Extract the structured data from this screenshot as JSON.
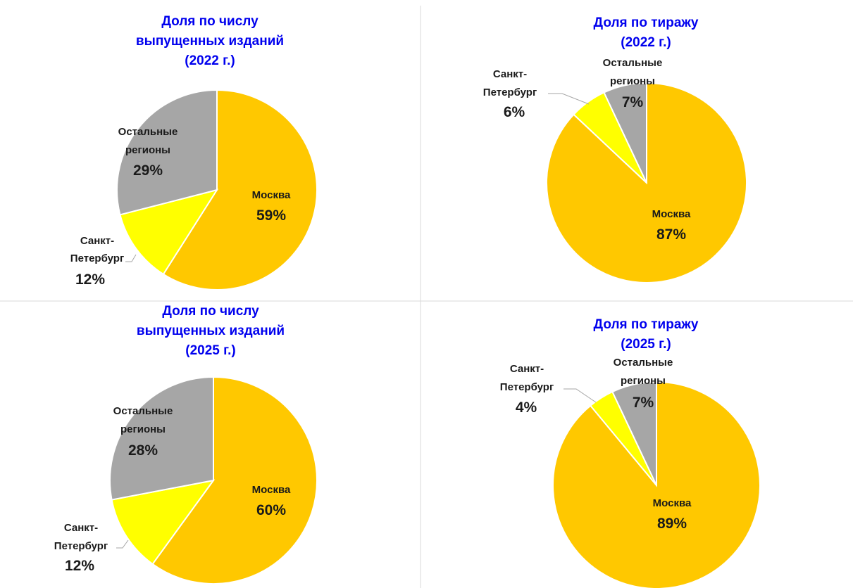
{
  "colors": {
    "moscow": "#ffc800",
    "spb": "#ffff00",
    "other": "#a6a6a6",
    "title": "#0000ee",
    "leader": "#a6a6a6",
    "divider": "#d9d9d9"
  },
  "chart_data": [
    {
      "type": "pie",
      "title_lines": [
        "Доля по числу",
        "выпущенных изданий",
        "(2022 г.)"
      ],
      "slices": [
        {
          "key": "moscow",
          "label_lines": [
            "Москва"
          ],
          "value": 59,
          "value_label": "59%"
        },
        {
          "key": "spb",
          "label_lines": [
            "Санкт-",
            "Петербург"
          ],
          "value": 12,
          "value_label": "12%"
        },
        {
          "key": "other",
          "label_lines": [
            "Остальные",
            "регионы"
          ],
          "value": 29,
          "value_label": "29%"
        }
      ]
    },
    {
      "type": "pie",
      "title_lines": [
        "Доля по тиражу",
        "(2022 г.)"
      ],
      "slices": [
        {
          "key": "moscow",
          "label_lines": [
            "Москва"
          ],
          "value": 87,
          "value_label": "87%"
        },
        {
          "key": "spb",
          "label_lines": [
            "Санкт-",
            "Петербург"
          ],
          "value": 6,
          "value_label": "6%"
        },
        {
          "key": "other",
          "label_lines": [
            "Остальные",
            "регионы"
          ],
          "value": 7,
          "value_label": "7%"
        }
      ]
    },
    {
      "type": "pie",
      "title_lines": [
        "Доля по числу",
        "выпущенных изданий",
        "(2025 г.)"
      ],
      "slices": [
        {
          "key": "moscow",
          "label_lines": [
            "Москва"
          ],
          "value": 60,
          "value_label": "60%"
        },
        {
          "key": "spb",
          "label_lines": [
            "Санкт-",
            "Петербург"
          ],
          "value": 12,
          "value_label": "12%"
        },
        {
          "key": "other",
          "label_lines": [
            "Остальные",
            "регионы"
          ],
          "value": 28,
          "value_label": "28%"
        }
      ]
    },
    {
      "type": "pie",
      "title_lines": [
        "Доля по тиражу",
        "(2025 г.)"
      ],
      "slices": [
        {
          "key": "moscow",
          "label_lines": [
            "Москва"
          ],
          "value": 89,
          "value_label": "89%"
        },
        {
          "key": "spb",
          "label_lines": [
            "Санкт-",
            "Петербург"
          ],
          "value": 4,
          "value_label": "4%"
        },
        {
          "key": "other",
          "label_lines": [
            "Остальные",
            "регионы"
          ],
          "value": 7,
          "value_label": "7%"
        }
      ]
    }
  ]
}
